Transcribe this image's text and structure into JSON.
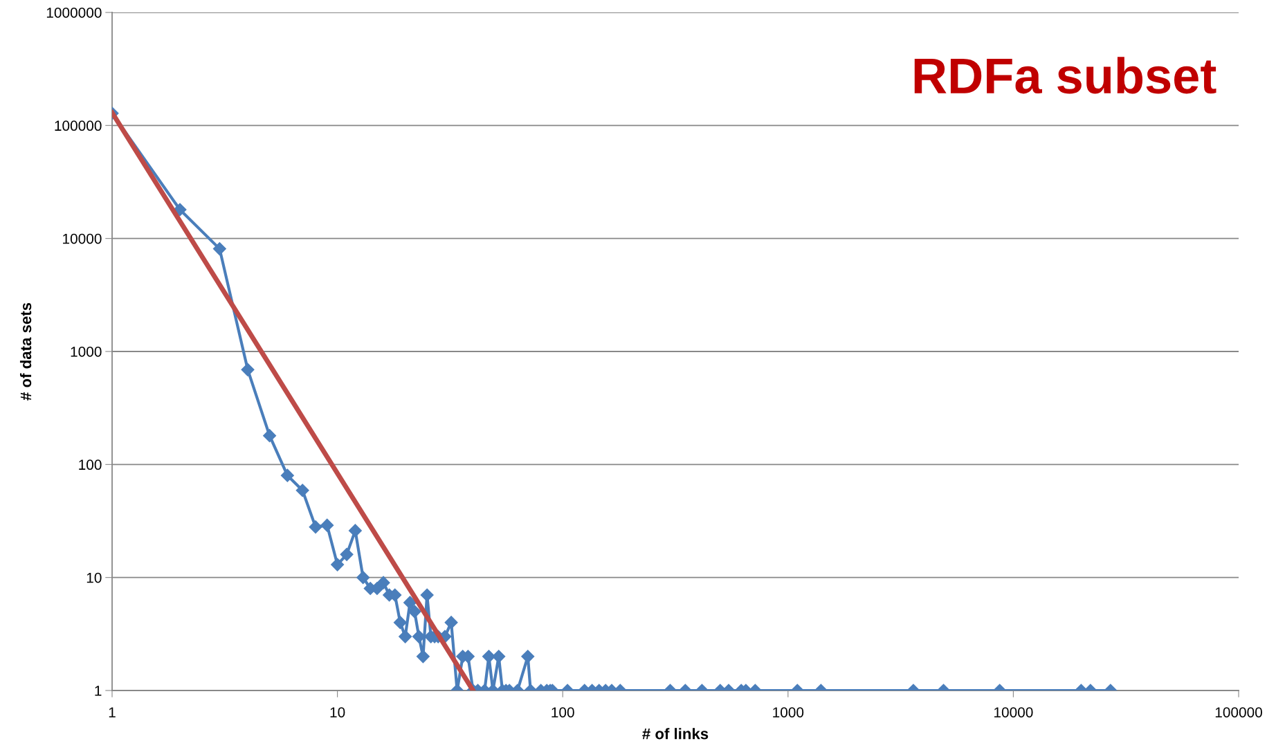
{
  "chart_data": {
    "type": "line",
    "xlabel": "# of links",
    "ylabel": "# of data sets",
    "log": "xy",
    "grid": "y",
    "legend": false,
    "xlim": [
      1,
      100000
    ],
    "xticks": [
      1,
      10,
      100,
      1000,
      10000,
      100000
    ],
    "ylim": [
      1,
      1000000
    ],
    "yticks": [
      1,
      10,
      100,
      1000,
      10000,
      100000,
      1000000
    ],
    "annotations": [
      "RDFa subset"
    ],
    "series": [
      {
        "color": "#4a7ebb",
        "marker": "diamond",
        "x": [
          1,
          2,
          3,
          4,
          5,
          6,
          7,
          8,
          9,
          10,
          11,
          12,
          13,
          14,
          15,
          16,
          17,
          18,
          19,
          20,
          21,
          22,
          23,
          24,
          25,
          26,
          27,
          28,
          30,
          32,
          34,
          36,
          38,
          40,
          42,
          45,
          47,
          49,
          52,
          54,
          56,
          58,
          63,
          70,
          72,
          80,
          85,
          88,
          90,
          105,
          125,
          135,
          145,
          155,
          165,
          180,
          300,
          350,
          415,
          500,
          545,
          620,
          650,
          715,
          1100,
          1400,
          3600,
          4900,
          8700,
          20000,
          22000,
          27000
        ],
        "values": [
          128000,
          18000,
          8100,
          690,
          180,
          80,
          59,
          28,
          29,
          13,
          16,
          26,
          10,
          8,
          8,
          9,
          7,
          7,
          4,
          3,
          6,
          5,
          3,
          2,
          7,
          3,
          3,
          3,
          3,
          4,
          1,
          2,
          2,
          1,
          1,
          1,
          2,
          1,
          2,
          1,
          1,
          1,
          1,
          2,
          1,
          1,
          1,
          1,
          1,
          1,
          1,
          1,
          1,
          1,
          1,
          1,
          1,
          1,
          1,
          1,
          1,
          1,
          1,
          1,
          1,
          1,
          1,
          1,
          1,
          1,
          1,
          1
        ]
      },
      {
        "color": "#be4b48",
        "marker": "none",
        "x": [
          1,
          40
        ],
        "values": [
          130000,
          1
        ]
      }
    ]
  }
}
